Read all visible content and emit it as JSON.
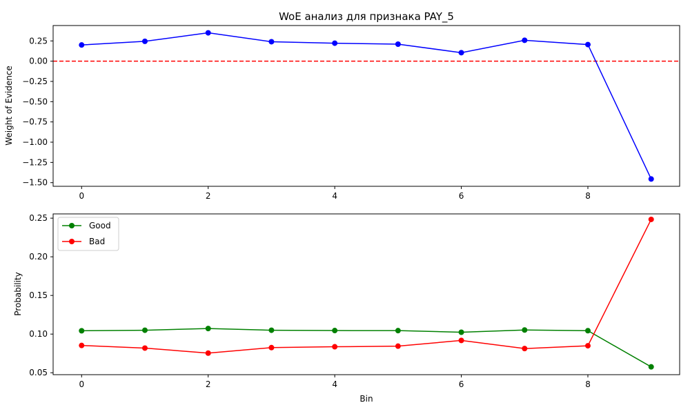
{
  "chart_data": [
    {
      "type": "line",
      "title": "WoE анализ для признака PAY_5",
      "xlabel": "",
      "ylabel": "Weight of Evidence",
      "x": [
        0,
        1,
        2,
        3,
        4,
        5,
        6,
        7,
        8,
        9
      ],
      "series": [
        {
          "color": "#0000ff",
          "marker": "circle",
          "values": [
            0.2,
            0.245,
            0.35,
            0.24,
            0.222,
            0.21,
            0.105,
            0.258,
            0.205,
            -1.455
          ]
        }
      ],
      "reference_line": {
        "y": 0,
        "color": "#ff0000",
        "style": "dashed"
      },
      "xlim": [
        -0.45,
        9.45
      ],
      "ylim": [
        -1.545,
        0.44
      ],
      "xticks": [
        0,
        2,
        4,
        6,
        8
      ],
      "xtick_labels": [
        "0",
        "2",
        "4",
        "6",
        "8"
      ],
      "yticks": [
        0.25,
        0.0,
        -0.25,
        -0.5,
        -0.75,
        -1.0,
        -1.25,
        -1.5
      ],
      "ytick_labels": [
        "0.25",
        "0.00",
        "−0.25",
        "−0.50",
        "−0.75",
        "−1.00",
        "−1.25",
        "−1.50"
      ],
      "grid": false,
      "legend": "none"
    },
    {
      "type": "line",
      "title": "",
      "xlabel": "Bin",
      "ylabel": "Probability",
      "x": [
        0,
        1,
        2,
        3,
        4,
        5,
        6,
        7,
        8,
        9
      ],
      "series": [
        {
          "name": "Good",
          "color": "#008000",
          "marker": "circle",
          "values": [
            0.1043,
            0.105,
            0.1072,
            0.105,
            0.1046,
            0.1045,
            0.1024,
            0.1053,
            0.1044,
            0.0576
          ]
        },
        {
          "name": "Bad",
          "color": "#ff0000",
          "marker": "circle",
          "values": [
            0.0853,
            0.0819,
            0.0754,
            0.0825,
            0.0836,
            0.0844,
            0.0918,
            0.0813,
            0.0849,
            0.2484
          ]
        }
      ],
      "xlim": [
        -0.45,
        9.45
      ],
      "ylim": [
        0.0475,
        0.2555
      ],
      "xticks": [
        0,
        2,
        4,
        6,
        8
      ],
      "xtick_labels": [
        "0",
        "2",
        "4",
        "6",
        "8"
      ],
      "yticks": [
        0.05,
        0.1,
        0.15,
        0.2,
        0.25
      ],
      "ytick_labels": [
        "0.05",
        "0.10",
        "0.15",
        "0.20",
        "0.25"
      ],
      "grid": false,
      "legend": "top-left"
    }
  ]
}
